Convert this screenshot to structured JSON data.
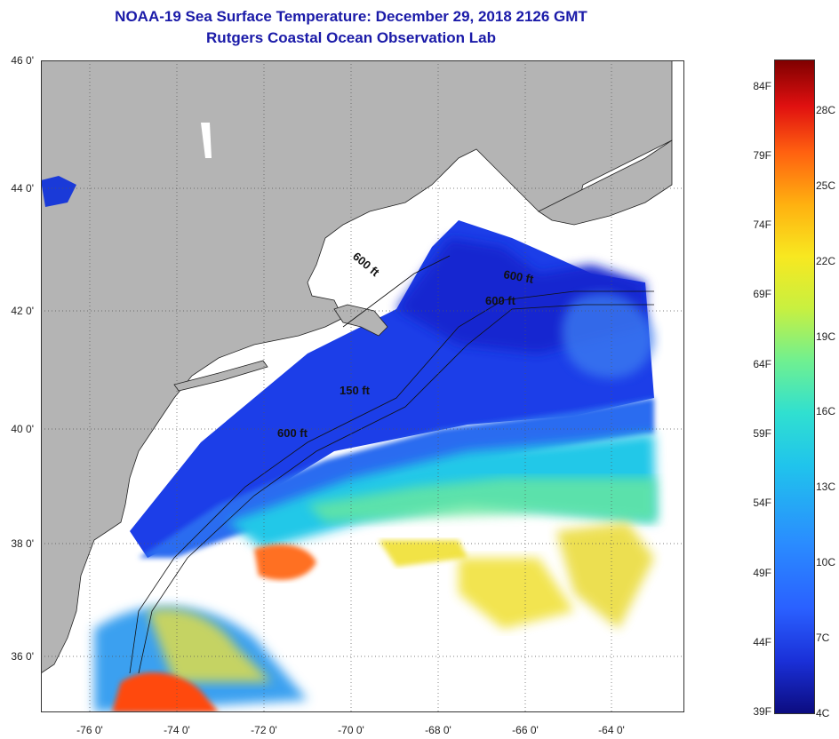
{
  "header": {
    "title": "NOAA-19 Sea Surface Temperature:  December 29, 2018 2126 GMT",
    "subtitle": "Rutgers Coastal Ocean Observation Lab"
  },
  "axes": {
    "lat_labels": [
      "46 0'",
      "44 0'",
      "42 0'",
      "40 0'",
      "38 0'",
      "36 0'"
    ],
    "lon_labels": [
      "-76 0'",
      "-74 0'",
      "-72 0'",
      "-70 0'",
      "-68 0'",
      "-66 0'",
      "-64 0'"
    ]
  },
  "isobaths": [
    "600 ft",
    "600 ft",
    "600 ft",
    "150 ft",
    "600 ft"
  ],
  "colorbar": {
    "fahrenheit": [
      "84F",
      "79F",
      "74F",
      "69F",
      "64F",
      "59F",
      "54F",
      "49F",
      "44F",
      "39F"
    ],
    "celsius": [
      "28C",
      "25C",
      "22C",
      "19C",
      "16C",
      "13C",
      "10C",
      "7C",
      "4C"
    ]
  },
  "colors": {
    "land": "#b4b4b4",
    "cloud": "#ffffff",
    "title": "#1a1aa8"
  }
}
